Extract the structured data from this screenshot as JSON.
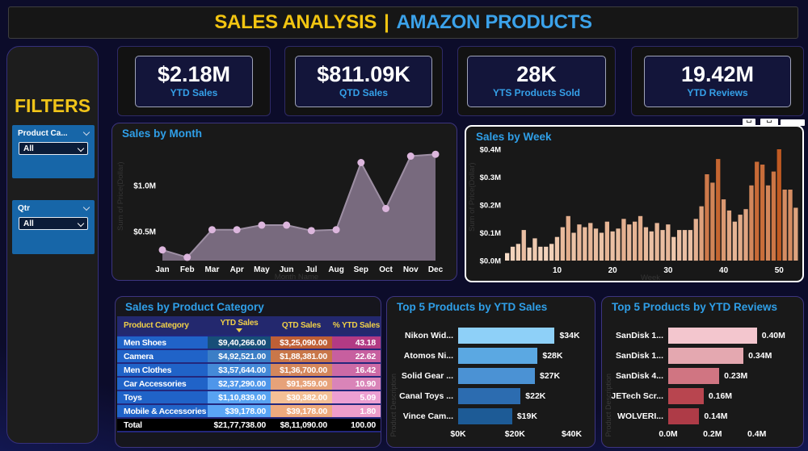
{
  "header": {
    "title_left": "SALES ANALYSIS",
    "separator": "|",
    "title_right": "AMAZON PRODUCTS"
  },
  "filters": {
    "title": "FILTERS",
    "slicers": [
      {
        "label": "Product Ca...",
        "value": "All"
      },
      {
        "label": "Qtr",
        "value": "All"
      }
    ]
  },
  "kpis": [
    {
      "value": "$2.18M",
      "label": "YTD Sales"
    },
    {
      "value": "$811.09K",
      "label": "QTD Sales"
    },
    {
      "value": "28K",
      "label": "YTS Products Sold"
    },
    {
      "value": "19.42M",
      "label": "YTD Reviews"
    }
  ],
  "week_toolbar": {
    "icons": [
      "filter-icon",
      "focus-mode-icon"
    ]
  },
  "chart_data": [
    {
      "id": "sales_by_month",
      "type": "area",
      "title": "Sales by Month",
      "xlabel": "Month Name",
      "ylabel": "Sum of Price(Dollar)",
      "categories": [
        "Jan",
        "Feb",
        "Mar",
        "Apr",
        "May",
        "Jun",
        "Jul",
        "Aug",
        "Sep",
        "Oct",
        "Nov",
        "Dec"
      ],
      "values": [
        0.3,
        0.22,
        0.52,
        0.52,
        0.57,
        0.57,
        0.51,
        0.52,
        1.25,
        0.75,
        1.32,
        1.34
      ],
      "yticks": [
        {
          "label": "$0.5M",
          "value": 0.5
        },
        {
          "label": "$1.0M",
          "value": 1.0
        }
      ],
      "area_fill": "#7c6d82",
      "line_color": "#9e8fa4",
      "marker_color": "#dcb6dd",
      "grid": false
    },
    {
      "id": "sales_by_week",
      "type": "bar",
      "title": "Sales by Week",
      "xlabel": "Week",
      "ylabel": "Sum of Price(Dollar)",
      "x_start_week": 1,
      "values": [
        0.027,
        0.05,
        0.06,
        0.11,
        0.047,
        0.08,
        0.05,
        0.05,
        0.06,
        0.085,
        0.12,
        0.16,
        0.1,
        0.13,
        0.12,
        0.135,
        0.115,
        0.1,
        0.14,
        0.105,
        0.115,
        0.15,
        0.13,
        0.14,
        0.16,
        0.12,
        0.105,
        0.135,
        0.11,
        0.13,
        0.085,
        0.11,
        0.11,
        0.11,
        0.15,
        0.195,
        0.31,
        0.28,
        0.365,
        0.22,
        0.18,
        0.14,
        0.165,
        0.185,
        0.27,
        0.355,
        0.345,
        0.27,
        0.32,
        0.4,
        0.255,
        0.255,
        0.19
      ],
      "yticks": [
        {
          "label": "$0.0M",
          "value": 0
        },
        {
          "label": "$0.1M",
          "value": 0.1
        },
        {
          "label": "$0.2M",
          "value": 0.2
        },
        {
          "label": "$0.3M",
          "value": 0.3
        },
        {
          "label": "$0.4M",
          "value": 0.4
        }
      ],
      "xticks": [
        10,
        20,
        30,
        40,
        50
      ],
      "ylim": [
        0,
        0.42
      ],
      "color_min": "#f6dbc6",
      "color_max": "#c05a22",
      "grid": false
    },
    {
      "id": "top5_sales",
      "type": "bar-h",
      "title": "Top 5 Products by YTD Sales",
      "ylabel": "Product Description",
      "categories": [
        "Nikon Wid...",
        "Atomos Ni...",
        "Solid Gear ...",
        "Canal Toys ...",
        "Vince Cam..."
      ],
      "values": [
        34,
        28,
        27,
        22,
        19
      ],
      "value_labels": [
        "$34K",
        "$28K",
        "$27K",
        "$22K",
        "$19K"
      ],
      "bar_colors": [
        "#8ed0f8",
        "#5ba8e2",
        "#4b92d4",
        "#2c6cb0",
        "#1d5b96"
      ],
      "xticks": [
        {
          "label": "$0K",
          "value": 0
        },
        {
          "label": "$20K",
          "value": 20
        },
        {
          "label": "$40K",
          "value": 40
        }
      ],
      "xmax": 45.8
    },
    {
      "id": "top5_reviews",
      "type": "bar-h",
      "title": "Top 5 Products by YTD Reviews",
      "ylabel": "Product Description",
      "categories": [
        "SanDisk 1...",
        "SanDisk 1...",
        "SanDisk 4...",
        "JETech Scr...",
        "WOLVERI..."
      ],
      "values": [
        0.4,
        0.34,
        0.23,
        0.16,
        0.14
      ],
      "value_labels": [
        "0.40M",
        "0.34M",
        "0.23M",
        "0.16M",
        "0.14M"
      ],
      "bar_colors": [
        "#f3c6ce",
        "#e4a8b0",
        "#d07582",
        "#b8454f",
        "#ae3b47"
      ],
      "xticks": [
        {
          "label": "0.0M",
          "value": 0
        },
        {
          "label": "0.2M",
          "value": 0.2
        },
        {
          "label": "0.4M",
          "value": 0.4
        }
      ],
      "xmax": 0.58
    }
  ],
  "table": {
    "title": "Sales by Product Category",
    "columns": [
      {
        "label": "Product Category",
        "sorted": false
      },
      {
        "label": "YTD Sales",
        "sorted": true
      },
      {
        "label": "QTD Sales",
        "sorted": false
      },
      {
        "label": "% YTD Sales",
        "sorted": false
      }
    ],
    "category_col_color": "#2063c8",
    "header_bg": "#23286e",
    "header_text_color": "#f0d048",
    "rows": [
      {
        "category": "Men Shoes",
        "ytd": "$9,40,266.00",
        "qtd": "$3,25,090.00",
        "pct": "43.18",
        "ytd_bg": "#174e78",
        "qtd_bg": "#bf5f36",
        "pct_bg": "#b23a84"
      },
      {
        "category": "Camera",
        "ytd": "$4,92,521.00",
        "qtd": "$1,88,381.00",
        "pct": "22.62",
        "ytd_bg": "#3b7ec6",
        "qtd_bg": "#c97749",
        "pct_bg": "#c75f9f"
      },
      {
        "category": "Men Clothes",
        "ytd": "$3,57,644.00",
        "qtd": "$1,36,700.00",
        "pct": "16.42",
        "ytd_bg": "#448ad8",
        "qtd_bg": "#d4875c",
        "pct_bg": "#cc6aa6"
      },
      {
        "category": "Car Accessories",
        "ytd": "$2,37,290.00",
        "qtd": "$91,359.00",
        "pct": "10.90",
        "ytd_bg": "#4e96ea",
        "qtd_bg": "#e7a279",
        "pct_bg": "#d984b8"
      },
      {
        "category": "Toys",
        "ytd": "$1,10,839.00",
        "qtd": "$30,382.00",
        "pct": "5.09",
        "ytd_bg": "#58a3f2",
        "qtd_bg": "#f4c096",
        "pct_bg": "#ec9fd2"
      },
      {
        "category": "Mobile & Accessories",
        "ytd": "$39,178.00",
        "qtd": "$39,178.00",
        "pct": "1.80",
        "ytd_bg": "#5aa5f5",
        "qtd_bg": "#edaa7e",
        "pct_bg": "#ee9dca"
      }
    ],
    "total": {
      "category": "Total",
      "ytd": "$21,77,738.00",
      "qtd": "$8,11,090.00",
      "pct": "100.00"
    }
  }
}
